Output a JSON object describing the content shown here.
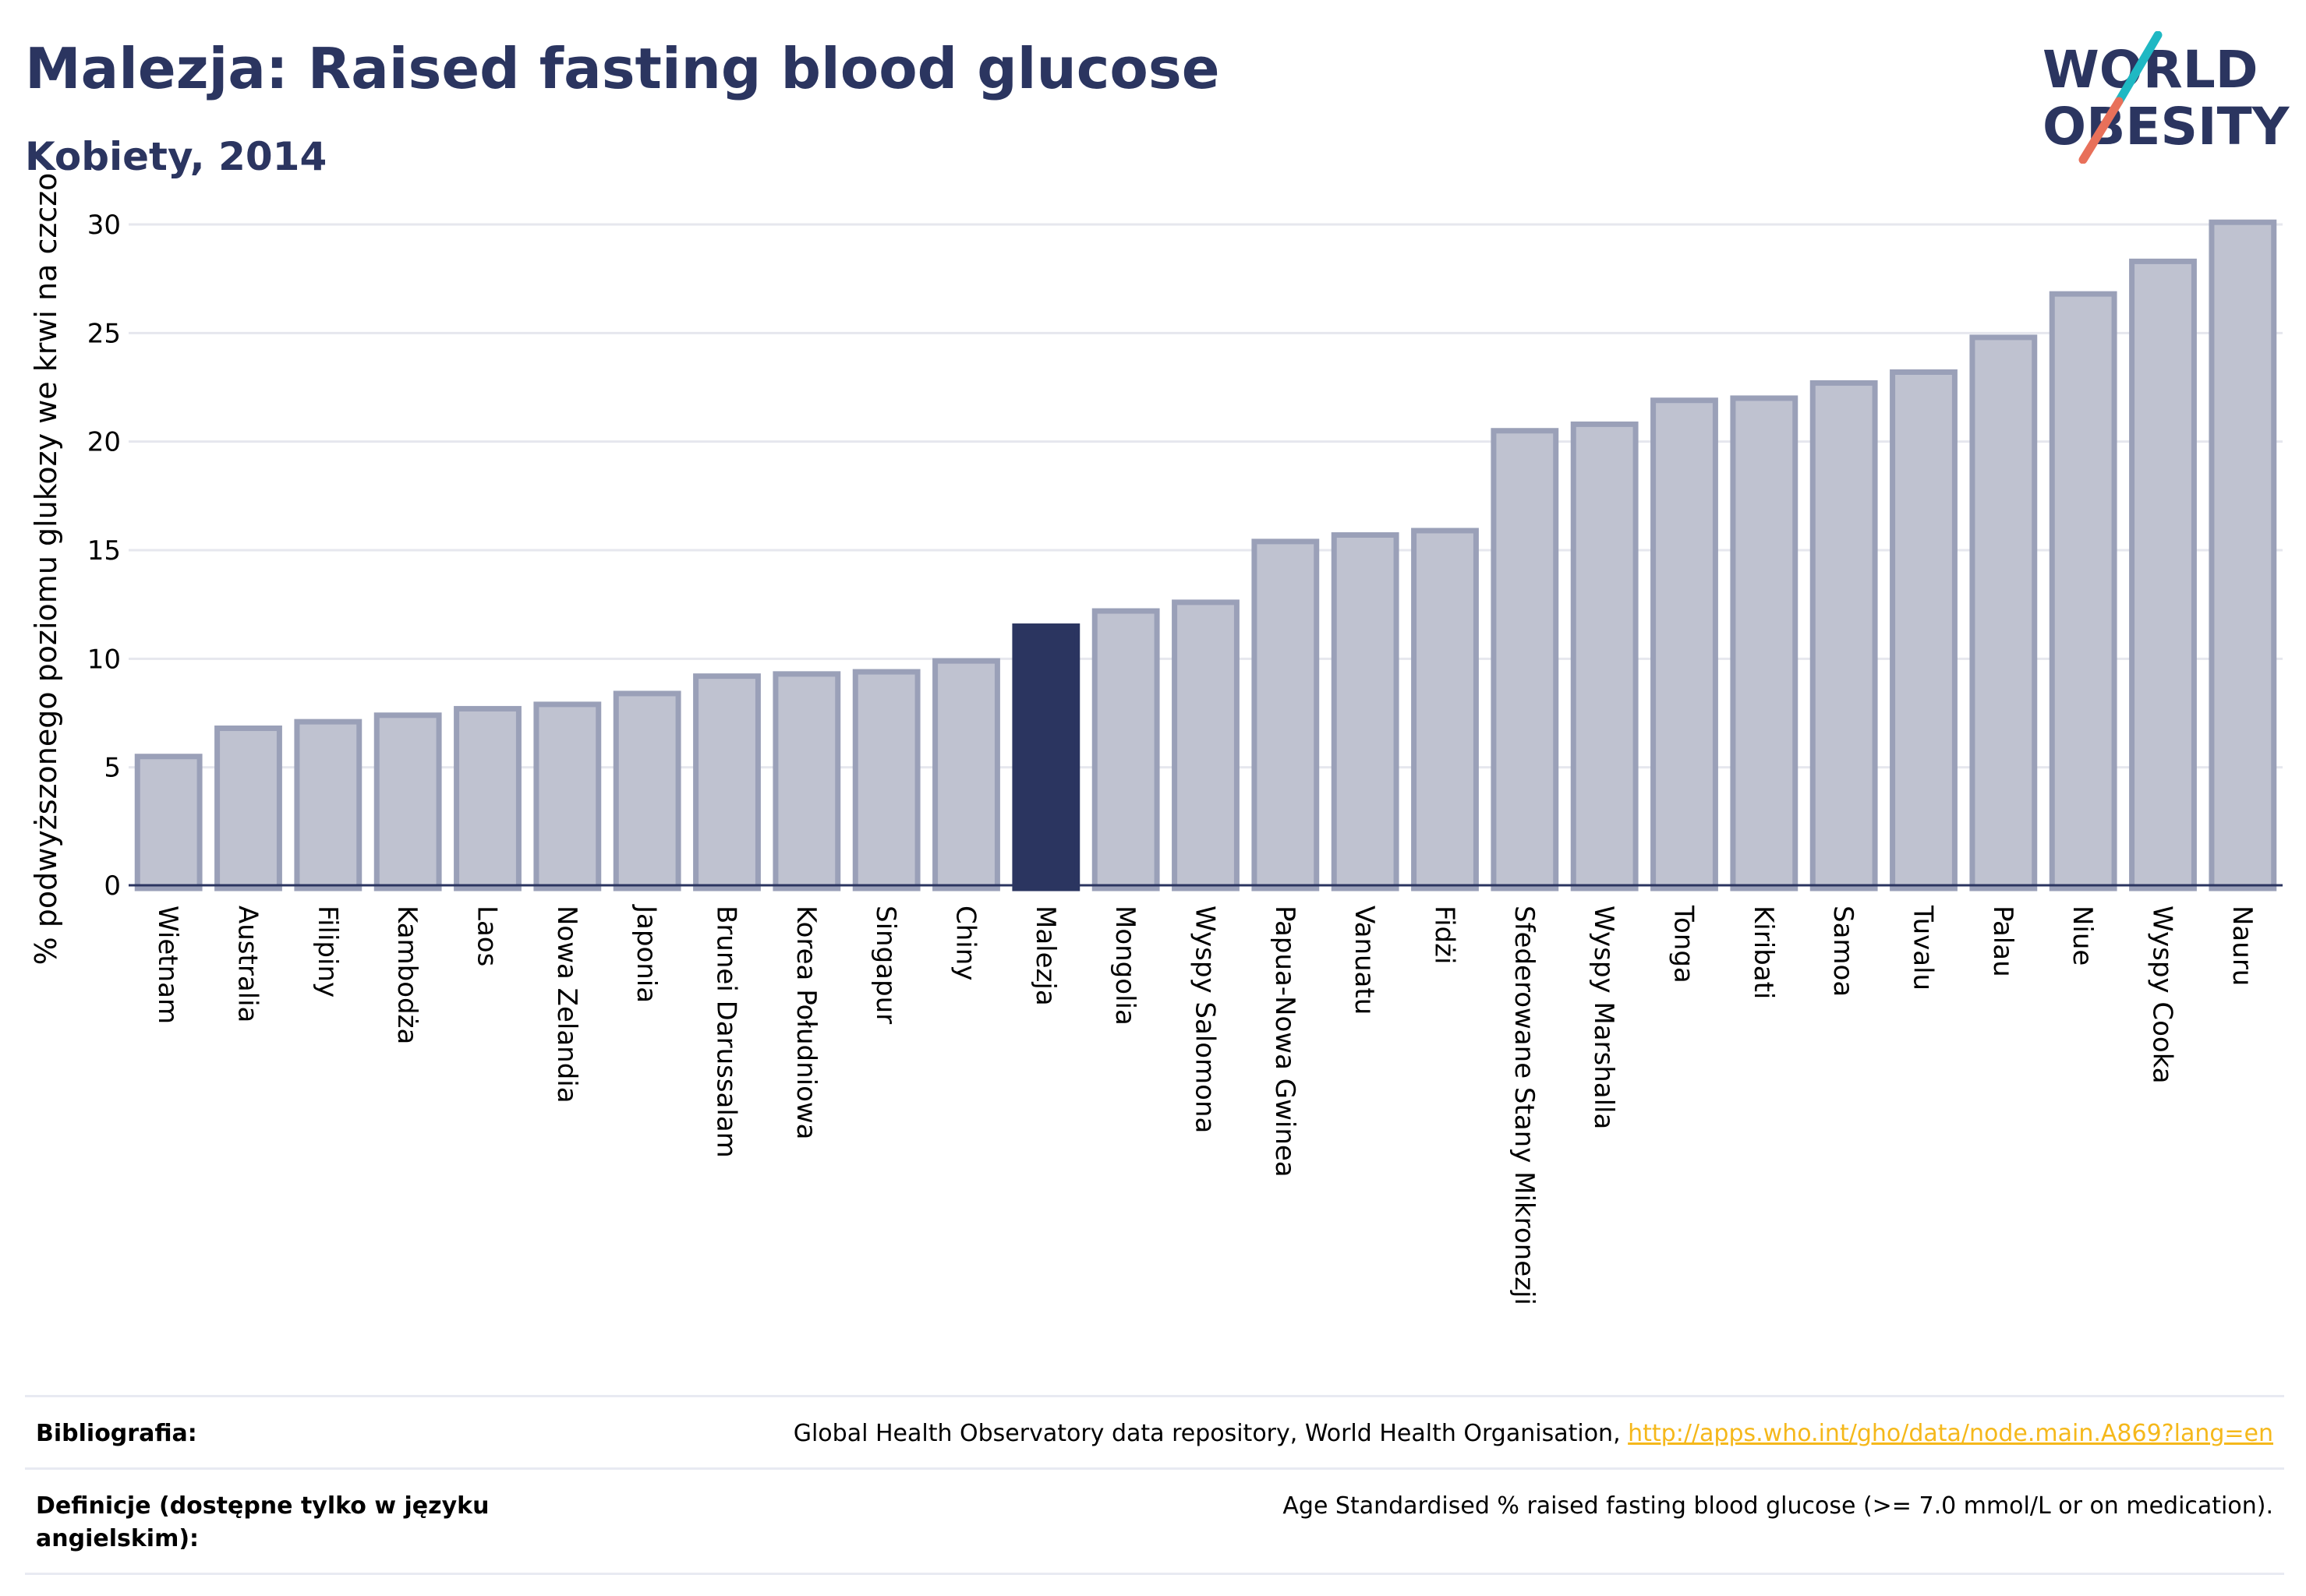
{
  "header": {
    "title": "Malezja: Raised fasting blood glucose",
    "subtitle": "Kobiety, 2014"
  },
  "logo": {
    "line1": "WORLD",
    "line2": "OBESITY"
  },
  "colors": {
    "bar_fill": "#bfc2d0",
    "bar_stroke": "#9aa0b8",
    "highlight": "#2b3560",
    "grid": "#e6e7ee",
    "axis": "#2b3560",
    "logo_teal": "#1fb8c3",
    "logo_coral": "#e8705a"
  },
  "chart_data": {
    "type": "bar",
    "ylabel": "% podwyższonego poziomu glukozy we krwi na czczo",
    "ylim": [
      0,
      30
    ],
    "yticks": [
      0,
      5,
      10,
      15,
      20,
      25,
      30
    ],
    "grid": true,
    "highlight": "Malezja",
    "categories": [
      "Wietnam",
      "Australia",
      "Filipiny",
      "Kambodża",
      "Laos",
      "Nowa Zelandia",
      "Japonia",
      "Brunei Darussalam",
      "Korea Południowa",
      "Singapur",
      "Chiny",
      "Malezja",
      "Mongolia",
      "Wyspy Salomona",
      "Papua-Nowa Gwinea",
      "Vanuatu",
      "Fidżi",
      "Sfederowane Stany Mikronezji",
      "Wyspy Marshalla",
      "Tonga",
      "Kiribati",
      "Samoa",
      "Tuvalu",
      "Palau",
      "Niue",
      "Wyspy Cooka",
      "Nauru"
    ],
    "values": [
      5.5,
      6.8,
      7.1,
      7.4,
      7.7,
      7.9,
      8.4,
      9.2,
      9.3,
      9.4,
      9.9,
      11.5,
      12.2,
      12.6,
      15.4,
      15.7,
      15.9,
      20.5,
      20.8,
      21.9,
      22.0,
      22.7,
      23.2,
      24.8,
      26.8,
      28.3,
      30.1
    ]
  },
  "footer": {
    "bibliography_label": "Bibliografia:",
    "bibliography_text": "Global Health Observatory data repository, World Health Organisation, ",
    "bibliography_link": "http://apps.who.int/gho/data/node.main.A869?lang=en",
    "definitions_label": "Definicje (dostępne tylko w języku angielskim):",
    "definitions_text": "Age Standardised % raised fasting blood glucose (>= 7.0 mmol/L or on medication)."
  }
}
